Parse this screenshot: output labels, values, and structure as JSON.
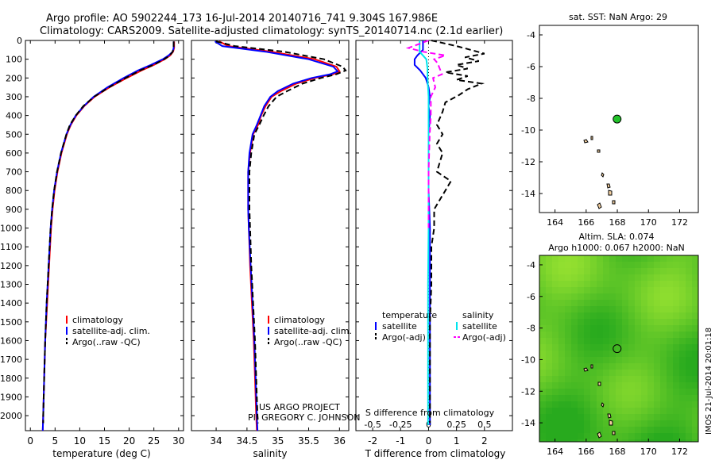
{
  "title_line1": "Argo profile: AO 5902244_173 16-Jul-2014 20140716_741 9.304S 167.986E",
  "title_line2": "Climatology: CARS2009. Satellite-adjusted climatology: synTS_20140714.nc (2.1d earlier)",
  "project_line1": "US ARGO PROJECT",
  "project_line2": "PI: GREGORY C. JOHNSON",
  "footer_stamp": "IMOS 21-Jul-2014 20:01:18",
  "colors": {
    "clim": "#ff0000",
    "sat": "#0000ff",
    "argo": "#000000",
    "sat_s": "#00e5ee",
    "argo_s": "#ff00ff",
    "map_green": "#4cc42a",
    "marker": "#22c22a"
  },
  "chart_data": [
    {
      "type": "line",
      "name": "temperature",
      "xlabel": "temperature (deg C)",
      "xlim": [
        -1,
        31
      ],
      "ylim": [
        2080,
        0
      ],
      "xticks": [
        "0",
        "5",
        "10",
        "15",
        "20",
        "25",
        "30"
      ],
      "xtick_values": [
        0,
        5,
        10,
        15,
        20,
        25,
        30
      ],
      "yticks": [
        "0",
        "100",
        "200",
        "300",
        "400",
        "500",
        "600",
        "700",
        "800",
        "900",
        "1000",
        "1100",
        "1200",
        "1300",
        "1400",
        "1500",
        "1600",
        "1700",
        "1800",
        "1900",
        "2000"
      ],
      "ytick_values": [
        0,
        100,
        200,
        300,
        400,
        500,
        600,
        700,
        800,
        900,
        1000,
        1100,
        1200,
        1300,
        1400,
        1500,
        1600,
        1700,
        1800,
        1900,
        2000
      ],
      "legend": [
        "climatology",
        "satellite-adj. clim.",
        "Argo(..raw -QC)"
      ],
      "series": [
        {
          "name": "climatology",
          "color": "clim",
          "dash": false,
          "depth": [
            5,
            40,
            60,
            80,
            100,
            130,
            160,
            200,
            250,
            300,
            350,
            400,
            450,
            500,
            600,
            700,
            800,
            900,
            1000,
            1200,
            1400,
            1600,
            1800,
            2000,
            2080
          ],
          "values": [
            29.1,
            29.1,
            28.9,
            28.3,
            27.2,
            25.0,
            22.5,
            19.5,
            16.0,
            13.0,
            10.9,
            9.3,
            8.2,
            7.4,
            6.3,
            5.5,
            4.9,
            4.5,
            4.2,
            3.8,
            3.4,
            3.0,
            2.8,
            2.6,
            2.5
          ]
        },
        {
          "name": "satellite-adj. clim.",
          "color": "sat",
          "dash": false,
          "depth": [
            5,
            40,
            60,
            80,
            100,
            130,
            160,
            200,
            250,
            300,
            350,
            400,
            450,
            500,
            600,
            700,
            800,
            900,
            1000,
            1200,
            1400,
            1600,
            1800,
            2000,
            2080
          ],
          "values": [
            29.0,
            29.0,
            28.8,
            28.0,
            26.8,
            24.4,
            21.8,
            18.9,
            15.6,
            12.8,
            10.8,
            9.2,
            8.1,
            7.3,
            6.2,
            5.4,
            4.8,
            4.4,
            4.1,
            3.7,
            3.3,
            3.0,
            2.8,
            2.6,
            2.5
          ]
        },
        {
          "name": "Argo(..raw -QC)",
          "color": "argo",
          "dash": true,
          "depth": [
            5,
            40,
            60,
            80,
            100,
            130,
            160,
            200,
            250,
            300,
            350,
            400,
            450,
            500,
            600,
            700,
            800,
            900,
            1000,
            1200,
            1400,
            1600,
            1800,
            2000,
            2040
          ],
          "values": [
            29.0,
            29.0,
            28.8,
            28.2,
            27.1,
            24.9,
            22.2,
            19.3,
            15.9,
            12.9,
            10.7,
            9.2,
            8.0,
            7.3,
            6.2,
            5.4,
            4.8,
            4.4,
            4.1,
            3.7,
            3.3,
            3.0,
            2.8,
            2.6,
            2.6
          ]
        }
      ]
    },
    {
      "type": "line",
      "name": "salinity",
      "xlabel": "salinity",
      "xlim": [
        33.6,
        36.15
      ],
      "ylim": [
        2080,
        0
      ],
      "xticks": [
        "34",
        "34.5",
        "35",
        "35.5",
        "36"
      ],
      "xtick_values": [
        34,
        34.5,
        35,
        35.5,
        36
      ],
      "legend": [
        "climatology",
        "satellite-adj. clim.",
        "Argo(..raw -QC)"
      ],
      "series": [
        {
          "name": "climatology",
          "color": "clim",
          "dash": false,
          "depth": [
            5,
            30,
            60,
            100,
            140,
            165,
            180,
            200,
            230,
            270,
            300,
            350,
            400,
            450,
            500,
            600,
            700,
            800,
            900,
            1000,
            1200,
            1400,
            1600,
            1800,
            2000,
            2080
          ],
          "values": [
            34.05,
            34.2,
            34.9,
            35.6,
            35.95,
            36.0,
            35.9,
            35.6,
            35.3,
            35.05,
            34.9,
            34.8,
            34.73,
            34.68,
            34.6,
            34.55,
            34.52,
            34.52,
            34.52,
            34.53,
            34.55,
            34.58,
            34.61,
            34.63,
            34.65,
            34.66
          ]
        },
        {
          "name": "satellite-adj. clim.",
          "color": "sat",
          "dash": false,
          "depth": [
            5,
            30,
            60,
            100,
            140,
            165,
            180,
            200,
            230,
            270,
            300,
            350,
            400,
            450,
            500,
            600,
            700,
            800,
            900,
            1000,
            1200,
            1400,
            1600,
            1800,
            2000,
            2080
          ],
          "values": [
            33.98,
            34.1,
            34.8,
            35.5,
            35.9,
            35.97,
            35.85,
            35.55,
            35.25,
            35.0,
            34.88,
            34.78,
            34.72,
            34.66,
            34.59,
            34.54,
            34.52,
            34.52,
            34.52,
            34.53,
            34.56,
            34.59,
            34.62,
            34.64,
            34.66,
            34.67
          ]
        },
        {
          "name": "Argo(..raw -QC)",
          "color": "argo",
          "dash": true,
          "depth": [
            5,
            30,
            60,
            100,
            140,
            160,
            180,
            200,
            230,
            270,
            300,
            350,
            400,
            450,
            500,
            600,
            700,
            800,
            900,
            1000,
            1200,
            1400,
            1600,
            1800,
            2000,
            2040
          ],
          "values": [
            34.0,
            34.3,
            35.1,
            35.75,
            36.05,
            36.1,
            35.95,
            35.7,
            35.4,
            35.15,
            34.98,
            34.85,
            34.77,
            34.7,
            34.62,
            34.57,
            34.54,
            34.54,
            34.54,
            34.55,
            34.57,
            34.6,
            34.63,
            34.65,
            34.67,
            34.68
          ]
        }
      ]
    },
    {
      "type": "line",
      "name": "differences",
      "xlabel_top": "S difference from climatology",
      "xlabel": "T difference from climatology",
      "xlim": [
        -2.6,
        3.0
      ],
      "ylim": [
        2080,
        0
      ],
      "xticks": [
        "-2",
        "-1",
        "0",
        "1",
        "2"
      ],
      "xtick_values": [
        -2,
        -1,
        0,
        1,
        2
      ],
      "sticks": [
        "-0.5",
        "-0.25",
        "0",
        "0.25",
        "0.5"
      ],
      "stick_values": [
        -0.5,
        -0.25,
        0,
        0.25,
        0.5
      ],
      "s_scale": 4,
      "legend_titles": [
        "temperature",
        "salinity"
      ],
      "legend": [
        "satellite",
        "Argo(-adj)",
        "satellite",
        "Argo(-adj)"
      ],
      "series": [
        {
          "name": "T satellite",
          "color": "sat",
          "dash": false,
          "depth": [
            0,
            50,
            80,
            100,
            130,
            160,
            200,
            250,
            300,
            350,
            400,
            500,
            600,
            800,
            1000,
            1200,
            1500,
            1800,
            2000,
            2050
          ],
          "values": [
            -0.2,
            -0.2,
            -0.4,
            -0.5,
            -0.5,
            -0.3,
            -0.1,
            0.0,
            0.05,
            0.0,
            0.05,
            0.0,
            0.0,
            0.0,
            0.05,
            0.05,
            0.05,
            0.05,
            0.05,
            0.05
          ]
        },
        {
          "name": "T Argo(-adj)",
          "color": "argo",
          "dash": true,
          "depth": [
            0,
            30,
            50,
            70,
            90,
            110,
            130,
            150,
            170,
            190,
            210,
            230,
            260,
            290,
            330,
            380,
            450,
            500,
            550,
            600,
            700,
            750,
            800,
            850,
            900,
            1000,
            1100,
            1300,
            1500,
            1800,
            2000,
            2040
          ],
          "values": [
            0.1,
            1.0,
            1.5,
            2.0,
            1.3,
            1.8,
            1.0,
            1.4,
            0.6,
            1.4,
            1.0,
            1.9,
            1.4,
            1.1,
            0.6,
            0.5,
            0.3,
            0.5,
            0.3,
            0.5,
            0.3,
            0.8,
            0.6,
            0.4,
            0.2,
            0.2,
            0.1,
            0.1,
            0.05,
            0.05,
            0.05,
            0.05
          ]
        },
        {
          "name": "S satellite",
          "color": "sat_s",
          "dash": false,
          "depth": [
            0,
            60,
            100,
            150,
            200,
            300,
            400,
            500,
            700,
            1000,
            1300,
            1600,
            1900,
            2050
          ],
          "values": [
            -0.08,
            -0.08,
            -0.02,
            -0.01,
            -0.01,
            0.0,
            0.0,
            0.0,
            0.0,
            0.0,
            -0.005,
            -0.005,
            -0.005,
            -0.005
          ]
        },
        {
          "name": "S Argo(-adj)",
          "color": "argo_s",
          "dash": true,
          "depth": [
            0,
            40,
            60,
            80,
            100,
            120,
            150,
            180,
            200,
            250,
            300,
            400,
            500,
            700,
            1000
          ],
          "values": [
            0.0,
            -0.18,
            -0.05,
            0.15,
            0.05,
            0.08,
            0.1,
            0.12,
            0.04,
            0.06,
            0.02,
            0.02,
            0.01,
            0.0,
            0.0
          ]
        }
      ]
    },
    {
      "type": "scatter",
      "name": "sst_map",
      "title": "sat. SST: NaN Argo: 29",
      "xlim": [
        163,
        173.2
      ],
      "ylim": [
        -15.2,
        -3.4
      ],
      "xticks": [
        "164",
        "166",
        "168",
        "170",
        "172"
      ],
      "xtick_values": [
        164,
        166,
        168,
        170,
        172
      ],
      "yticks": [
        "-4",
        "-6",
        "-8",
        "-10",
        "-12",
        "-14"
      ],
      "ytick_values": [
        -4,
        -6,
        -8,
        -10,
        -12,
        -14
      ],
      "profile_lon": 167.986,
      "profile_lat": -9.304
    },
    {
      "type": "heatmap",
      "name": "sla_map",
      "title_line1": "Altim. SLA: 0.074",
      "title_line2": "Argo h1000: 0.067 h2000: NaN",
      "xlim": [
        163,
        173.2
      ],
      "ylim": [
        -15.2,
        -3.4
      ],
      "xticks": [
        "164",
        "166",
        "168",
        "170",
        "172"
      ],
      "xtick_values": [
        164,
        166,
        168,
        170,
        172
      ],
      "yticks": [
        "-4",
        "-6",
        "-8",
        "-10",
        "-12",
        "-14"
      ],
      "ytick_values": [
        -4,
        -6,
        -8,
        -10,
        -12,
        -14
      ],
      "profile_lon": 167.986,
      "profile_lat": -9.304
    }
  ]
}
